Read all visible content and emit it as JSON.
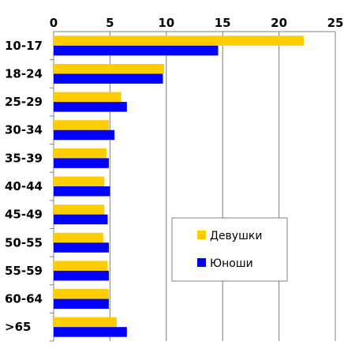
{
  "chart_data": {
    "type": "bar",
    "orientation": "horizontal",
    "categories": [
      "10-17",
      "18-24",
      "25-29",
      "30-34",
      "35-39",
      "40-44",
      "45-49",
      "50-55",
      "55-59",
      "60-64",
      ">65"
    ],
    "series": [
      {
        "name": "Девушки",
        "color": "#FFCC00",
        "values": [
          22.2,
          9.8,
          6.0,
          4.9,
          4.7,
          4.5,
          4.5,
          4.4,
          4.8,
          4.9,
          5.6
        ]
      },
      {
        "name": "Юноши",
        "color": "#0000FF",
        "values": [
          14.6,
          9.7,
          6.5,
          5.4,
          4.9,
          5.0,
          4.8,
          4.9,
          4.9,
          4.9,
          6.5
        ]
      }
    ],
    "x_ticks": [
      "0",
      "5",
      "10",
      "15",
      "20",
      "25"
    ],
    "xlim": [
      0,
      25
    ],
    "x_axis_position": "top",
    "grid": true,
    "legend_position": "bottom-right",
    "title": "",
    "xlabel": "",
    "ylabel": ""
  }
}
